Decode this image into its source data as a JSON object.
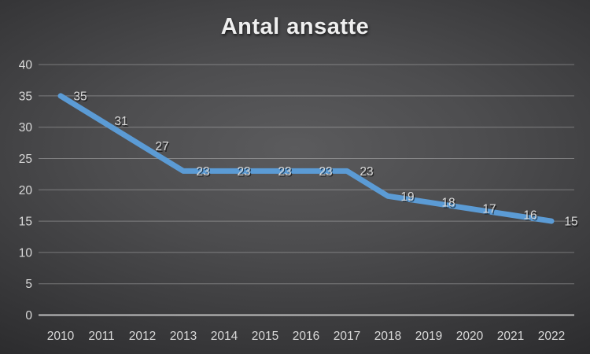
{
  "chart_data": {
    "type": "line",
    "title": "Antal ansatte",
    "categories": [
      "2010",
      "2011",
      "2012",
      "2013",
      "2014",
      "2015",
      "2016",
      "2017",
      "2018",
      "2019",
      "2020",
      "2021",
      "2022"
    ],
    "series": [
      {
        "name": "Antal ansatte",
        "values": [
          35,
          31,
          27,
          23,
          23,
          23,
          23,
          23,
          19,
          18,
          17,
          16,
          15
        ]
      }
    ],
    "data_labels": [
      35,
      31,
      27,
      23,
      23,
      23,
      23,
      23,
      19,
      18,
      17,
      16,
      15
    ],
    "xlabel": "",
    "ylabel": "",
    "ylim": [
      0,
      40
    ],
    "yticks": [
      0,
      5,
      10,
      15,
      20,
      25,
      30,
      35,
      40
    ],
    "grid": true,
    "legend": false,
    "colors": {
      "line": "#5B9BD5",
      "data_label": "#D9D9D9",
      "tick_label": "#D9D9D9",
      "gridline": "rgba(255,255,255,0.30)",
      "axis_line": "#BFBFBF",
      "title": "#EFEFEF",
      "background_center": "#5B5B5D",
      "background_edge": "#1E1E20"
    }
  }
}
